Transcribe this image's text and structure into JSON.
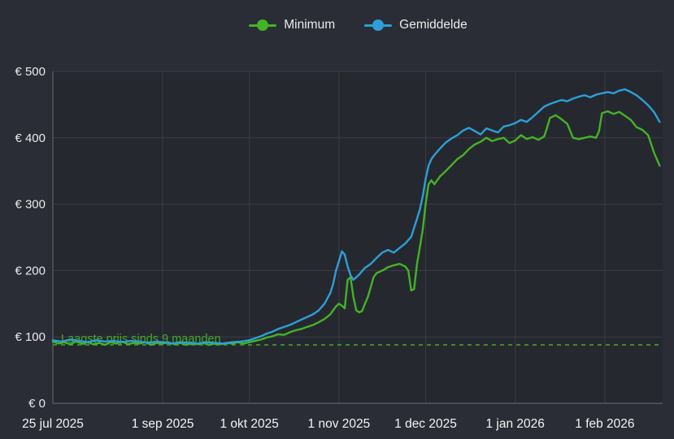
{
  "legend": {
    "items": [
      {
        "label": "Minimum",
        "color": "#43b327"
      },
      {
        "label": "Gemiddelde",
        "color": "#2d9fd8"
      }
    ]
  },
  "colors": {
    "background": "#2b2d36",
    "plot_background": "#26282f",
    "grid": "#3a3d46",
    "axis": "#53565e",
    "tick_text": "#e9eaec",
    "x_tick_text": "#f2f3f5"
  },
  "chart_data": {
    "type": "line",
    "title": "",
    "xlabel": "",
    "ylabel": "",
    "grid": true,
    "legend_position": "top",
    "ylim": [
      0,
      500
    ],
    "y_ticks": [
      0,
      100,
      200,
      300,
      400,
      500
    ],
    "y_tick_labels": [
      "€ 0",
      "€ 100",
      "€ 200",
      "€ 300",
      "€ 400",
      "€ 500"
    ],
    "x_domain": [
      0,
      211
    ],
    "x_ticks": [
      {
        "day": 0,
        "label": "25 jul 2025"
      },
      {
        "day": 38,
        "label": "1 sep 2025"
      },
      {
        "day": 68,
        "label": "1 okt 2025"
      },
      {
        "day": 99,
        "label": "1 nov 2025"
      },
      {
        "day": 129,
        "label": "1 dec 2025"
      },
      {
        "day": 160,
        "label": "1 jan 2026"
      },
      {
        "day": 191,
        "label": "1 feb 2026"
      }
    ],
    "reference_line": {
      "value": 88,
      "style": "dashed",
      "color": "#43b327",
      "label": "Laagste prijs sinds 9 maanden"
    },
    "series": [
      {
        "name": "Minimum",
        "color": "#43b327",
        "points": [
          [
            0,
            93
          ],
          [
            2,
            90
          ],
          [
            4,
            92
          ],
          [
            6,
            89
          ],
          [
            8,
            93
          ],
          [
            10,
            90
          ],
          [
            12,
            92
          ],
          [
            14,
            89
          ],
          [
            16,
            91
          ],
          [
            18,
            88
          ],
          [
            20,
            92
          ],
          [
            22,
            90
          ],
          [
            24,
            93
          ],
          [
            26,
            89
          ],
          [
            28,
            91
          ],
          [
            30,
            90
          ],
          [
            32,
            92
          ],
          [
            34,
            88
          ],
          [
            36,
            91
          ],
          [
            38,
            90
          ],
          [
            40,
            92
          ],
          [
            42,
            89
          ],
          [
            44,
            91
          ],
          [
            46,
            88
          ],
          [
            48,
            90
          ],
          [
            50,
            89
          ],
          [
            52,
            91
          ],
          [
            54,
            88
          ],
          [
            56,
            90
          ],
          [
            58,
            89
          ],
          [
            60,
            91
          ],
          [
            62,
            90
          ],
          [
            64,
            92
          ],
          [
            66,
            90
          ],
          [
            68,
            92
          ],
          [
            70,
            94
          ],
          [
            72,
            96
          ],
          [
            74,
            99
          ],
          [
            76,
            101
          ],
          [
            78,
            104
          ],
          [
            80,
            103
          ],
          [
            82,
            107
          ],
          [
            84,
            110
          ],
          [
            86,
            112
          ],
          [
            88,
            115
          ],
          [
            90,
            118
          ],
          [
            92,
            122
          ],
          [
            94,
            127
          ],
          [
            96,
            134
          ],
          [
            98,
            146
          ],
          [
            99,
            150
          ],
          [
            100,
            147
          ],
          [
            101,
            143
          ],
          [
            102,
            186
          ],
          [
            103,
            190
          ],
          [
            104,
            160
          ],
          [
            105,
            140
          ],
          [
            106,
            137
          ],
          [
            107,
            139
          ],
          [
            108,
            150
          ],
          [
            109,
            160
          ],
          [
            110,
            175
          ],
          [
            111,
            190
          ],
          [
            112,
            196
          ],
          [
            114,
            200
          ],
          [
            116,
            205
          ],
          [
            118,
            208
          ],
          [
            120,
            210
          ],
          [
            122,
            206
          ],
          [
            123,
            200
          ],
          [
            124,
            170
          ],
          [
            125,
            172
          ],
          [
            126,
            210
          ],
          [
            127,
            235
          ],
          [
            128,
            262
          ],
          [
            129,
            300
          ],
          [
            130,
            330
          ],
          [
            131,
            336
          ],
          [
            132,
            330
          ],
          [
            134,
            342
          ],
          [
            136,
            350
          ],
          [
            138,
            359
          ],
          [
            140,
            368
          ],
          [
            142,
            374
          ],
          [
            144,
            383
          ],
          [
            146,
            390
          ],
          [
            148,
            394
          ],
          [
            150,
            400
          ],
          [
            152,
            395
          ],
          [
            154,
            398
          ],
          [
            156,
            400
          ],
          [
            158,
            392
          ],
          [
            160,
            396
          ],
          [
            162,
            404
          ],
          [
            164,
            398
          ],
          [
            166,
            401
          ],
          [
            168,
            397
          ],
          [
            170,
            402
          ],
          [
            171,
            415
          ],
          [
            172,
            430
          ],
          [
            174,
            434
          ],
          [
            176,
            428
          ],
          [
            178,
            421
          ],
          [
            180,
            400
          ],
          [
            182,
            398
          ],
          [
            184,
            400
          ],
          [
            186,
            402
          ],
          [
            188,
            400
          ],
          [
            189,
            410
          ],
          [
            190,
            437
          ],
          [
            192,
            440
          ],
          [
            194,
            436
          ],
          [
            196,
            439
          ],
          [
            198,
            433
          ],
          [
            200,
            427
          ],
          [
            202,
            416
          ],
          [
            204,
            412
          ],
          [
            206,
            404
          ],
          [
            208,
            378
          ],
          [
            210,
            358
          ]
        ]
      },
      {
        "name": "Gemiddelde",
        "color": "#2d9fd8",
        "points": [
          [
            0,
            95
          ],
          [
            3,
            93
          ],
          [
            6,
            96
          ],
          [
            9,
            94
          ],
          [
            12,
            92
          ],
          [
            15,
            95
          ],
          [
            18,
            93
          ],
          [
            21,
            94
          ],
          [
            24,
            92
          ],
          [
            27,
            94
          ],
          [
            30,
            93
          ],
          [
            33,
            91
          ],
          [
            36,
            93
          ],
          [
            38,
            92
          ],
          [
            41,
            90
          ],
          [
            44,
            92
          ],
          [
            47,
            91
          ],
          [
            50,
            90
          ],
          [
            53,
            92
          ],
          [
            56,
            91
          ],
          [
            59,
            90
          ],
          [
            62,
            92
          ],
          [
            65,
            93
          ],
          [
            68,
            95
          ],
          [
            70,
            98
          ],
          [
            72,
            101
          ],
          [
            74,
            105
          ],
          [
            76,
            108
          ],
          [
            78,
            112
          ],
          [
            80,
            115
          ],
          [
            82,
            118
          ],
          [
            84,
            122
          ],
          [
            86,
            126
          ],
          [
            88,
            130
          ],
          [
            90,
            134
          ],
          [
            92,
            140
          ],
          [
            94,
            150
          ],
          [
            96,
            166
          ],
          [
            97,
            180
          ],
          [
            98,
            200
          ],
          [
            99,
            214
          ],
          [
            100,
            229
          ],
          [
            101,
            224
          ],
          [
            102,
            206
          ],
          [
            103,
            193
          ],
          [
            104,
            186
          ],
          [
            105,
            190
          ],
          [
            106,
            194
          ],
          [
            107,
            199
          ],
          [
            108,
            204
          ],
          [
            110,
            210
          ],
          [
            112,
            219
          ],
          [
            114,
            227
          ],
          [
            116,
            231
          ],
          [
            118,
            227
          ],
          [
            120,
            234
          ],
          [
            122,
            241
          ],
          [
            124,
            251
          ],
          [
            126,
            278
          ],
          [
            127,
            292
          ],
          [
            128,
            312
          ],
          [
            129,
            338
          ],
          [
            130,
            358
          ],
          [
            131,
            368
          ],
          [
            132,
            374
          ],
          [
            134,
            384
          ],
          [
            136,
            393
          ],
          [
            138,
            399
          ],
          [
            140,
            404
          ],
          [
            142,
            411
          ],
          [
            144,
            415
          ],
          [
            146,
            410
          ],
          [
            148,
            405
          ],
          [
            150,
            414
          ],
          [
            152,
            411
          ],
          [
            154,
            408
          ],
          [
            156,
            417
          ],
          [
            158,
            419
          ],
          [
            160,
            422
          ],
          [
            162,
            427
          ],
          [
            164,
            424
          ],
          [
            166,
            431
          ],
          [
            168,
            439
          ],
          [
            170,
            447
          ],
          [
            172,
            451
          ],
          [
            174,
            454
          ],
          [
            176,
            457
          ],
          [
            178,
            455
          ],
          [
            180,
            459
          ],
          [
            182,
            462
          ],
          [
            184,
            464
          ],
          [
            186,
            461
          ],
          [
            188,
            465
          ],
          [
            190,
            467
          ],
          [
            192,
            469
          ],
          [
            194,
            467
          ],
          [
            196,
            471
          ],
          [
            198,
            473
          ],
          [
            200,
            469
          ],
          [
            202,
            464
          ],
          [
            204,
            457
          ],
          [
            206,
            449
          ],
          [
            208,
            439
          ],
          [
            210,
            424
          ]
        ]
      }
    ]
  }
}
